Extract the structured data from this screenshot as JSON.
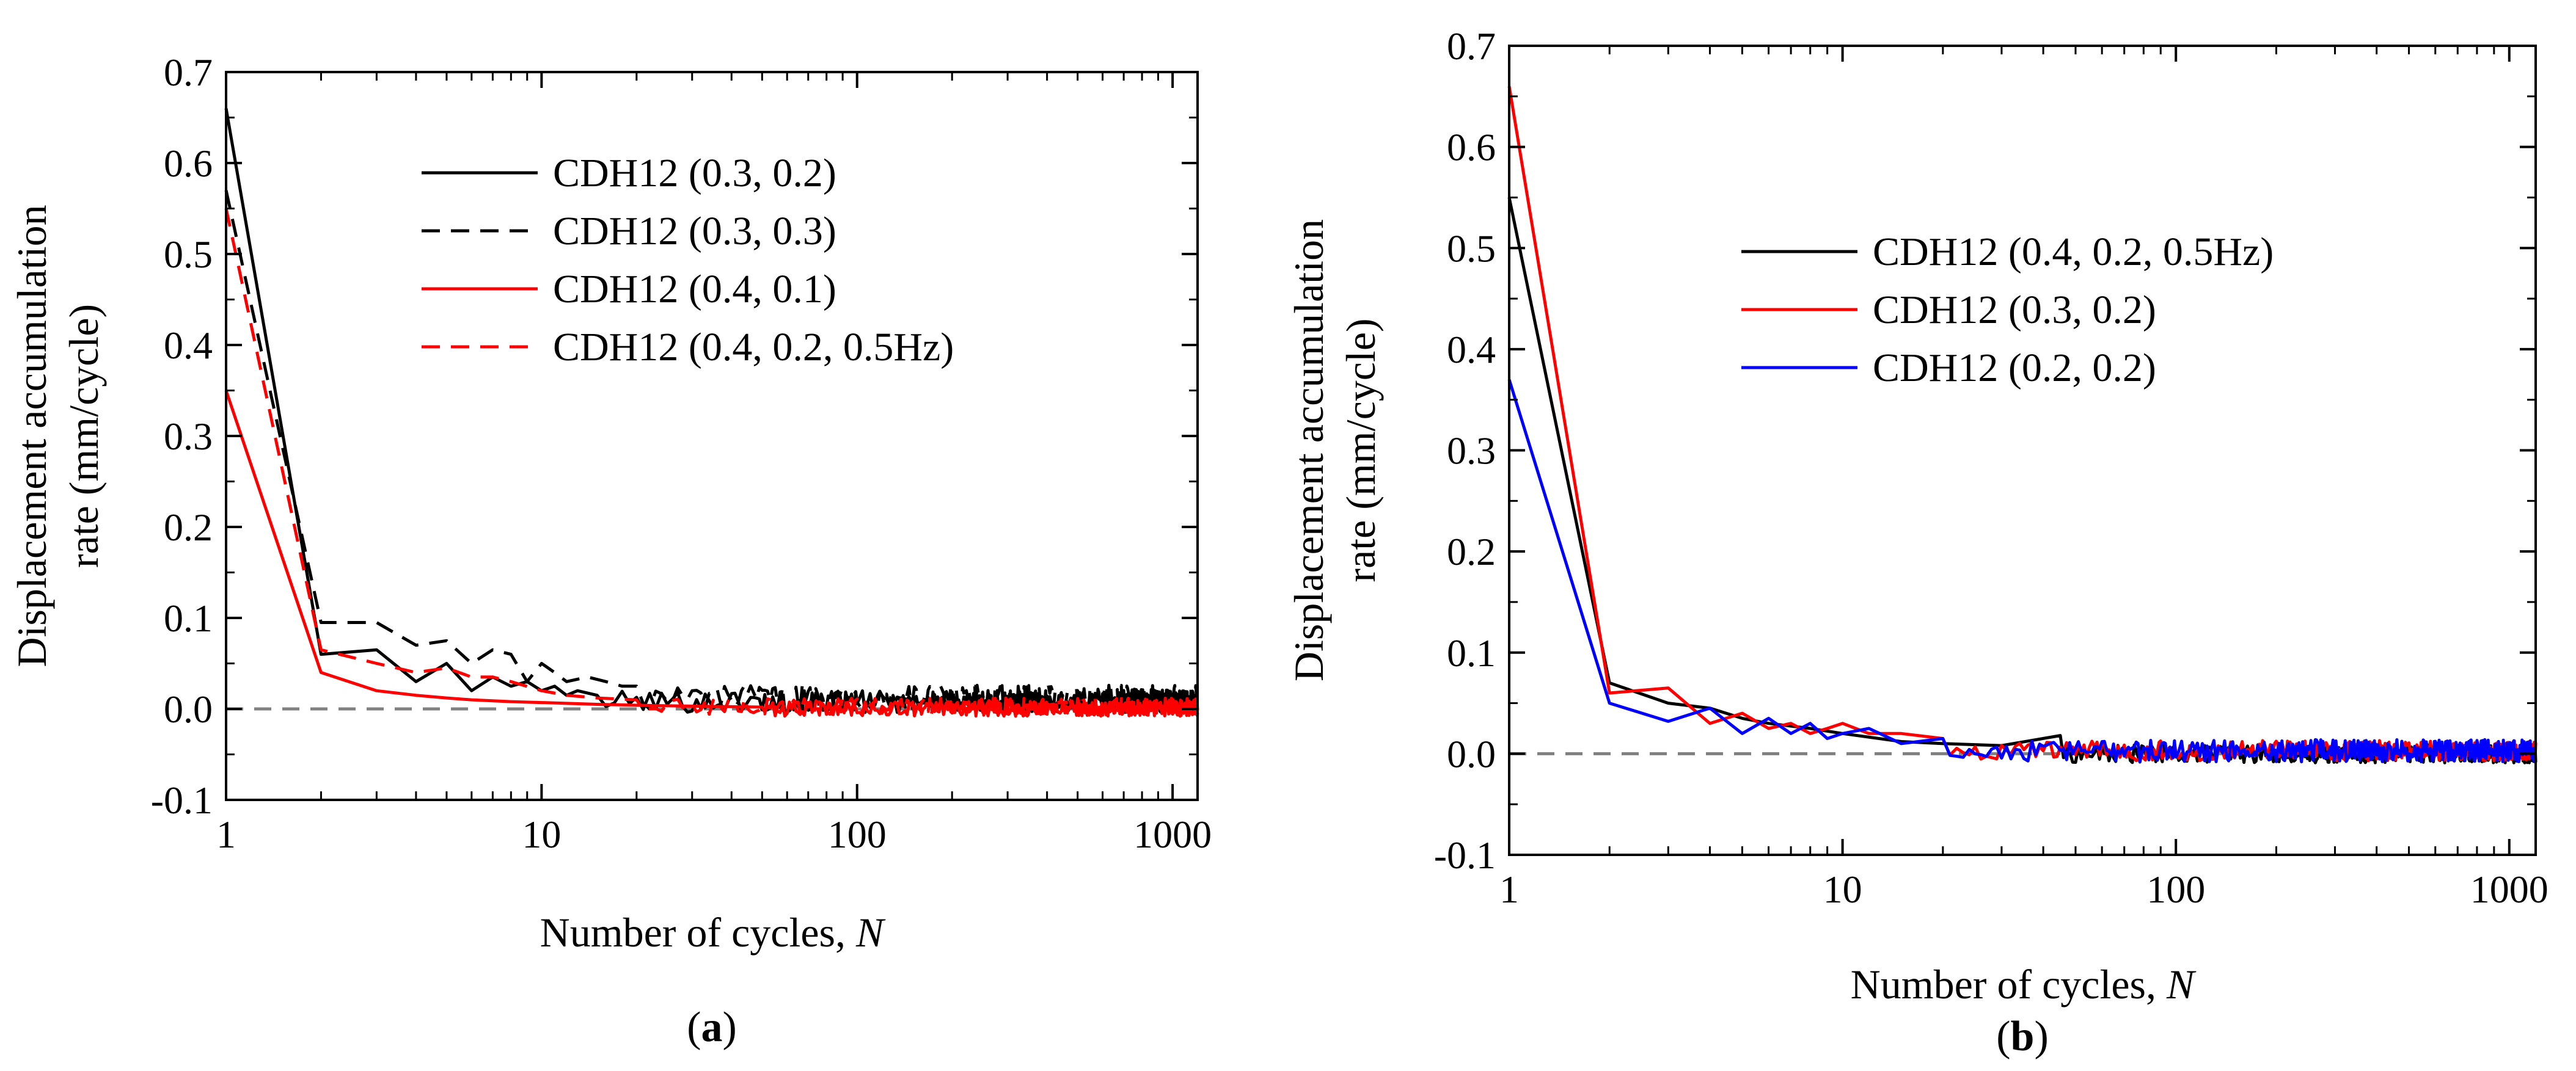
{
  "chart_data": [
    {
      "id": "a",
      "type": "line",
      "panel_label_open": "(",
      "panel_label": "a",
      "panel_label_close": ")",
      "xlabel_main": "Number of cycles, ",
      "xlabel_var": "N",
      "ylabel_line1": "Displacement accumulation",
      "ylabel_line2": "rate (mm/cycle)",
      "xscale": "log",
      "xlim": [
        1,
        1200
      ],
      "ylim": [
        -0.1,
        0.7
      ],
      "xticks": [
        1,
        10,
        100,
        1000
      ],
      "xtick_labels": [
        "1",
        "10",
        "100",
        "1000"
      ],
      "yticks": [
        -0.1,
        0.0,
        0.1,
        0.2,
        0.3,
        0.4,
        0.5,
        0.6,
        0.7
      ],
      "ytick_labels": [
        "-0.1",
        "0.0",
        "0.1",
        "0.2",
        "0.3",
        "0.4",
        "0.5",
        "0.6",
        "0.7"
      ],
      "reference_line": {
        "y": 0.0,
        "color": "#808080",
        "style": "dashed"
      },
      "legend_position": "upper-middle",
      "series": [
        {
          "name": "CDH12 (0.3, 0.2)",
          "color": "#000000",
          "style": "solid",
          "x": [
            1,
            2,
            3,
            4,
            5,
            6,
            7,
            8,
            9,
            10,
            11,
            12,
            13,
            15
          ],
          "y": [
            0.66,
            0.06,
            0.065,
            0.03,
            0.05,
            0.02,
            0.035,
            0.025,
            0.03,
            0.02,
            0.025,
            0.015,
            0.02,
            0.015
          ],
          "noise": {
            "from": 15,
            "to": 1200,
            "mean": 0.008,
            "amp": 0.012
          }
        },
        {
          "name": "CDH12 (0.3, 0.3)",
          "color": "#000000",
          "style": "dashed",
          "x": [
            1,
            2,
            3,
            4,
            5,
            6,
            7,
            8,
            9,
            10,
            11,
            12,
            14,
            16,
            18,
            20
          ],
          "y": [
            0.57,
            0.095,
            0.095,
            0.07,
            0.075,
            0.05,
            0.065,
            0.06,
            0.03,
            0.05,
            0.04,
            0.03,
            0.035,
            0.03,
            0.025,
            0.025
          ],
          "noise": {
            "from": 20,
            "to": 1200,
            "mean": 0.012,
            "amp": 0.014
          }
        },
        {
          "name": "CDH12 (0.4, 0.1)",
          "color": "#ff0000",
          "style": "solid",
          "x": [
            1,
            2,
            3,
            4,
            5,
            6,
            8,
            10,
            15,
            20,
            30,
            50
          ],
          "y": [
            0.35,
            0.04,
            0.02,
            0.015,
            0.012,
            0.01,
            0.008,
            0.007,
            0.005,
            0.004,
            0.003,
            0.002
          ],
          "noise": {
            "from": 50,
            "to": 1200,
            "mean": 0.0,
            "amp": 0.008
          }
        },
        {
          "name": "CDH12 (0.4, 0.2, 0.5Hz)",
          "color": "#ff0000",
          "style": "dashed",
          "x": [
            1,
            2,
            3,
            4,
            5,
            6,
            7,
            8,
            10,
            12,
            15,
            20
          ],
          "y": [
            0.55,
            0.065,
            0.05,
            0.04,
            0.045,
            0.035,
            0.035,
            0.03,
            0.02,
            0.015,
            0.012,
            0.01
          ],
          "noise": {
            "from": 20,
            "to": 1200,
            "mean": 0.003,
            "amp": 0.009
          }
        }
      ]
    },
    {
      "id": "b",
      "type": "line",
      "panel_label_open": "(",
      "panel_label": "b",
      "panel_label_close": ")",
      "xlabel_main": "Number of cycles, ",
      "xlabel_var": "N",
      "ylabel_line1": "Displacement accumulation",
      "ylabel_line2": "rate (mm/cycle)",
      "xscale": "log",
      "xlim": [
        1,
        1200
      ],
      "ylim": [
        -0.1,
        0.7
      ],
      "xticks": [
        1,
        10,
        100,
        1000
      ],
      "xtick_labels": [
        "1",
        "10",
        "100",
        "1000"
      ],
      "yticks": [
        -0.1,
        0.0,
        0.1,
        0.2,
        0.3,
        0.4,
        0.5,
        0.6,
        0.7
      ],
      "ytick_labels": [
        "-0.1",
        "0.0",
        "0.1",
        "0.2",
        "0.3",
        "0.4",
        "0.5",
        "0.6",
        "0.7"
      ],
      "reference_line": {
        "y": 0.0,
        "color": "#808080",
        "style": "dashed"
      },
      "legend_position": "upper-middle",
      "series": [
        {
          "name": "CDH12 (0.4, 0.2, 0.5Hz)",
          "color": "#000000",
          "style": "solid",
          "x": [
            1,
            2,
            3,
            4,
            5,
            6,
            8,
            10,
            15,
            20,
            30,
            45
          ],
          "y": [
            0.55,
            0.07,
            0.05,
            0.045,
            0.035,
            0.03,
            0.025,
            0.02,
            0.012,
            0.01,
            0.008,
            0.018
          ],
          "noise": {
            "from": 45,
            "to": 1200,
            "mean": 0.0,
            "amp": 0.009
          }
        },
        {
          "name": "CDH12 (0.3, 0.2)",
          "color": "#ff0000",
          "style": "solid",
          "x": [
            1,
            2,
            3,
            4,
            5,
            6,
            7,
            8,
            9,
            10,
            12,
            15,
            20
          ],
          "y": [
            0.66,
            0.06,
            0.065,
            0.03,
            0.04,
            0.025,
            0.03,
            0.02,
            0.025,
            0.03,
            0.02,
            0.02,
            0.015
          ],
          "noise": {
            "from": 20,
            "to": 1200,
            "mean": 0.003,
            "amp": 0.01
          }
        },
        {
          "name": "CDH12 (0.2, 0.2)",
          "color": "#0000ff",
          "style": "solid",
          "x": [
            1,
            2,
            3,
            4,
            5,
            6,
            7,
            8,
            9,
            10,
            12,
            15,
            20
          ],
          "y": [
            0.37,
            0.05,
            0.032,
            0.045,
            0.02,
            0.035,
            0.02,
            0.03,
            0.015,
            0.02,
            0.025,
            0.01,
            0.015
          ],
          "noise": {
            "from": 20,
            "to": 1200,
            "mean": 0.003,
            "amp": 0.011
          }
        }
      ]
    }
  ]
}
